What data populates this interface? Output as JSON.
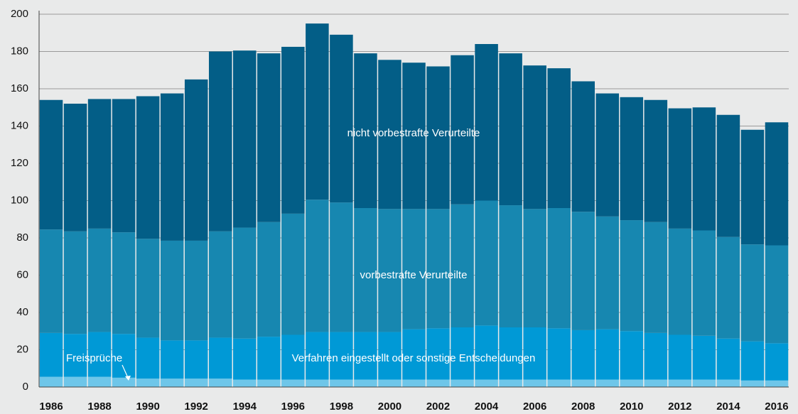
{
  "chart_data": {
    "type": "stacked_bar",
    "categories": [
      "1986",
      null,
      "1988",
      null,
      "1990",
      null,
      "1992",
      null,
      "1994",
      null,
      "1996",
      null,
      "1998",
      null,
      "2000",
      null,
      "2002",
      null,
      "2004",
      null,
      "2006",
      null,
      "2008",
      null,
      "2010",
      null,
      "2012",
      null,
      "2014",
      null,
      "2016"
    ],
    "series": [
      {
        "name": "Freisprüche",
        "color": "#6ec6e9",
        "values": [
          5.5,
          5.5,
          5.5,
          5,
          4.5,
          4.5,
          4.5,
          4.5,
          4,
          4,
          4,
          4,
          4,
          4,
          4,
          4,
          4,
          4,
          4,
          4,
          4,
          4,
          4,
          4,
          4,
          4,
          4,
          4,
          4,
          3.5,
          3.5
        ]
      },
      {
        "name": "Verfahren eingestellt oder sonstige Entscheidungen",
        "color": "#0099d6",
        "values": [
          23.5,
          23,
          24,
          23.5,
          22,
          20.5,
          20.5,
          22,
          22,
          23,
          24,
          25.5,
          25.5,
          25.5,
          25.5,
          27,
          27.5,
          28,
          29,
          28,
          28,
          27.5,
          26.5,
          27,
          26,
          25,
          24,
          23.5,
          22,
          21,
          20
        ]
      },
      {
        "name": "vorbestrafte Verurteilte",
        "color": "#1787b0",
        "values": [
          55.5,
          55,
          55.5,
          54.5,
          53,
          53.5,
          53.5,
          57,
          59.5,
          61.5,
          65,
          71,
          69.5,
          66.5,
          66,
          64.5,
          64,
          66,
          67,
          65.5,
          63.5,
          64.5,
          63.5,
          60.5,
          59.5,
          59.5,
          57,
          56.5,
          54.5,
          52,
          52.5
        ]
      },
      {
        "name": "nicht vorbestrafte Verurteilte",
        "color": "#035e87",
        "values": [
          69.5,
          68.5,
          69.5,
          71.5,
          76.5,
          79,
          86.5,
          96.5,
          95,
          90.5,
          89.5,
          94.5,
          90,
          83,
          80,
          78.5,
          76.5,
          80,
          84,
          81.5,
          77,
          75,
          70,
          66,
          66,
          65.5,
          64.5,
          66,
          65.5,
          61.5,
          66
        ]
      }
    ],
    "ylim": [
      0,
      200
    ],
    "yticks": [
      0,
      20,
      40,
      60,
      80,
      100,
      120,
      140,
      160,
      180,
      200
    ],
    "grid": true
  }
}
